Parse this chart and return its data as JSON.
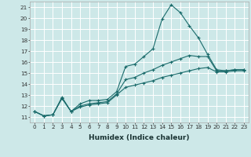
{
  "xlabel": "Humidex (Indice chaleur)",
  "bg_color": "#cde8e8",
  "grid_color": "#ffffff",
  "line_color": "#1a6b6b",
  "xlim": [
    -0.5,
    23.5
  ],
  "ylim": [
    10.5,
    21.5
  ],
  "xticks": [
    0,
    1,
    2,
    3,
    4,
    5,
    6,
    7,
    8,
    9,
    10,
    11,
    12,
    13,
    14,
    15,
    16,
    17,
    18,
    19,
    20,
    21,
    22,
    23
  ],
  "yticks": [
    11,
    12,
    13,
    14,
    15,
    16,
    17,
    18,
    19,
    20,
    21
  ],
  "series": [
    [
      11.5,
      11.1,
      11.2,
      12.8,
      11.5,
      12.2,
      12.5,
      12.5,
      12.6,
      13.3,
      15.6,
      15.8,
      16.5,
      17.2,
      19.9,
      21.2,
      20.5,
      19.3,
      18.2,
      16.7,
      15.3,
      15.2,
      15.3,
      15.3
    ],
    [
      11.5,
      11.1,
      11.2,
      12.7,
      11.5,
      12.0,
      12.2,
      12.3,
      12.4,
      13.1,
      14.4,
      14.6,
      15.0,
      15.3,
      15.7,
      16.0,
      16.3,
      16.6,
      16.5,
      16.5,
      15.2,
      15.2,
      15.3,
      15.3
    ],
    [
      11.5,
      11.1,
      11.2,
      12.7,
      11.5,
      11.9,
      12.1,
      12.2,
      12.3,
      13.0,
      13.7,
      13.9,
      14.1,
      14.3,
      14.6,
      14.8,
      15.0,
      15.2,
      15.4,
      15.5,
      15.1,
      15.1,
      15.2,
      15.2
    ]
  ]
}
